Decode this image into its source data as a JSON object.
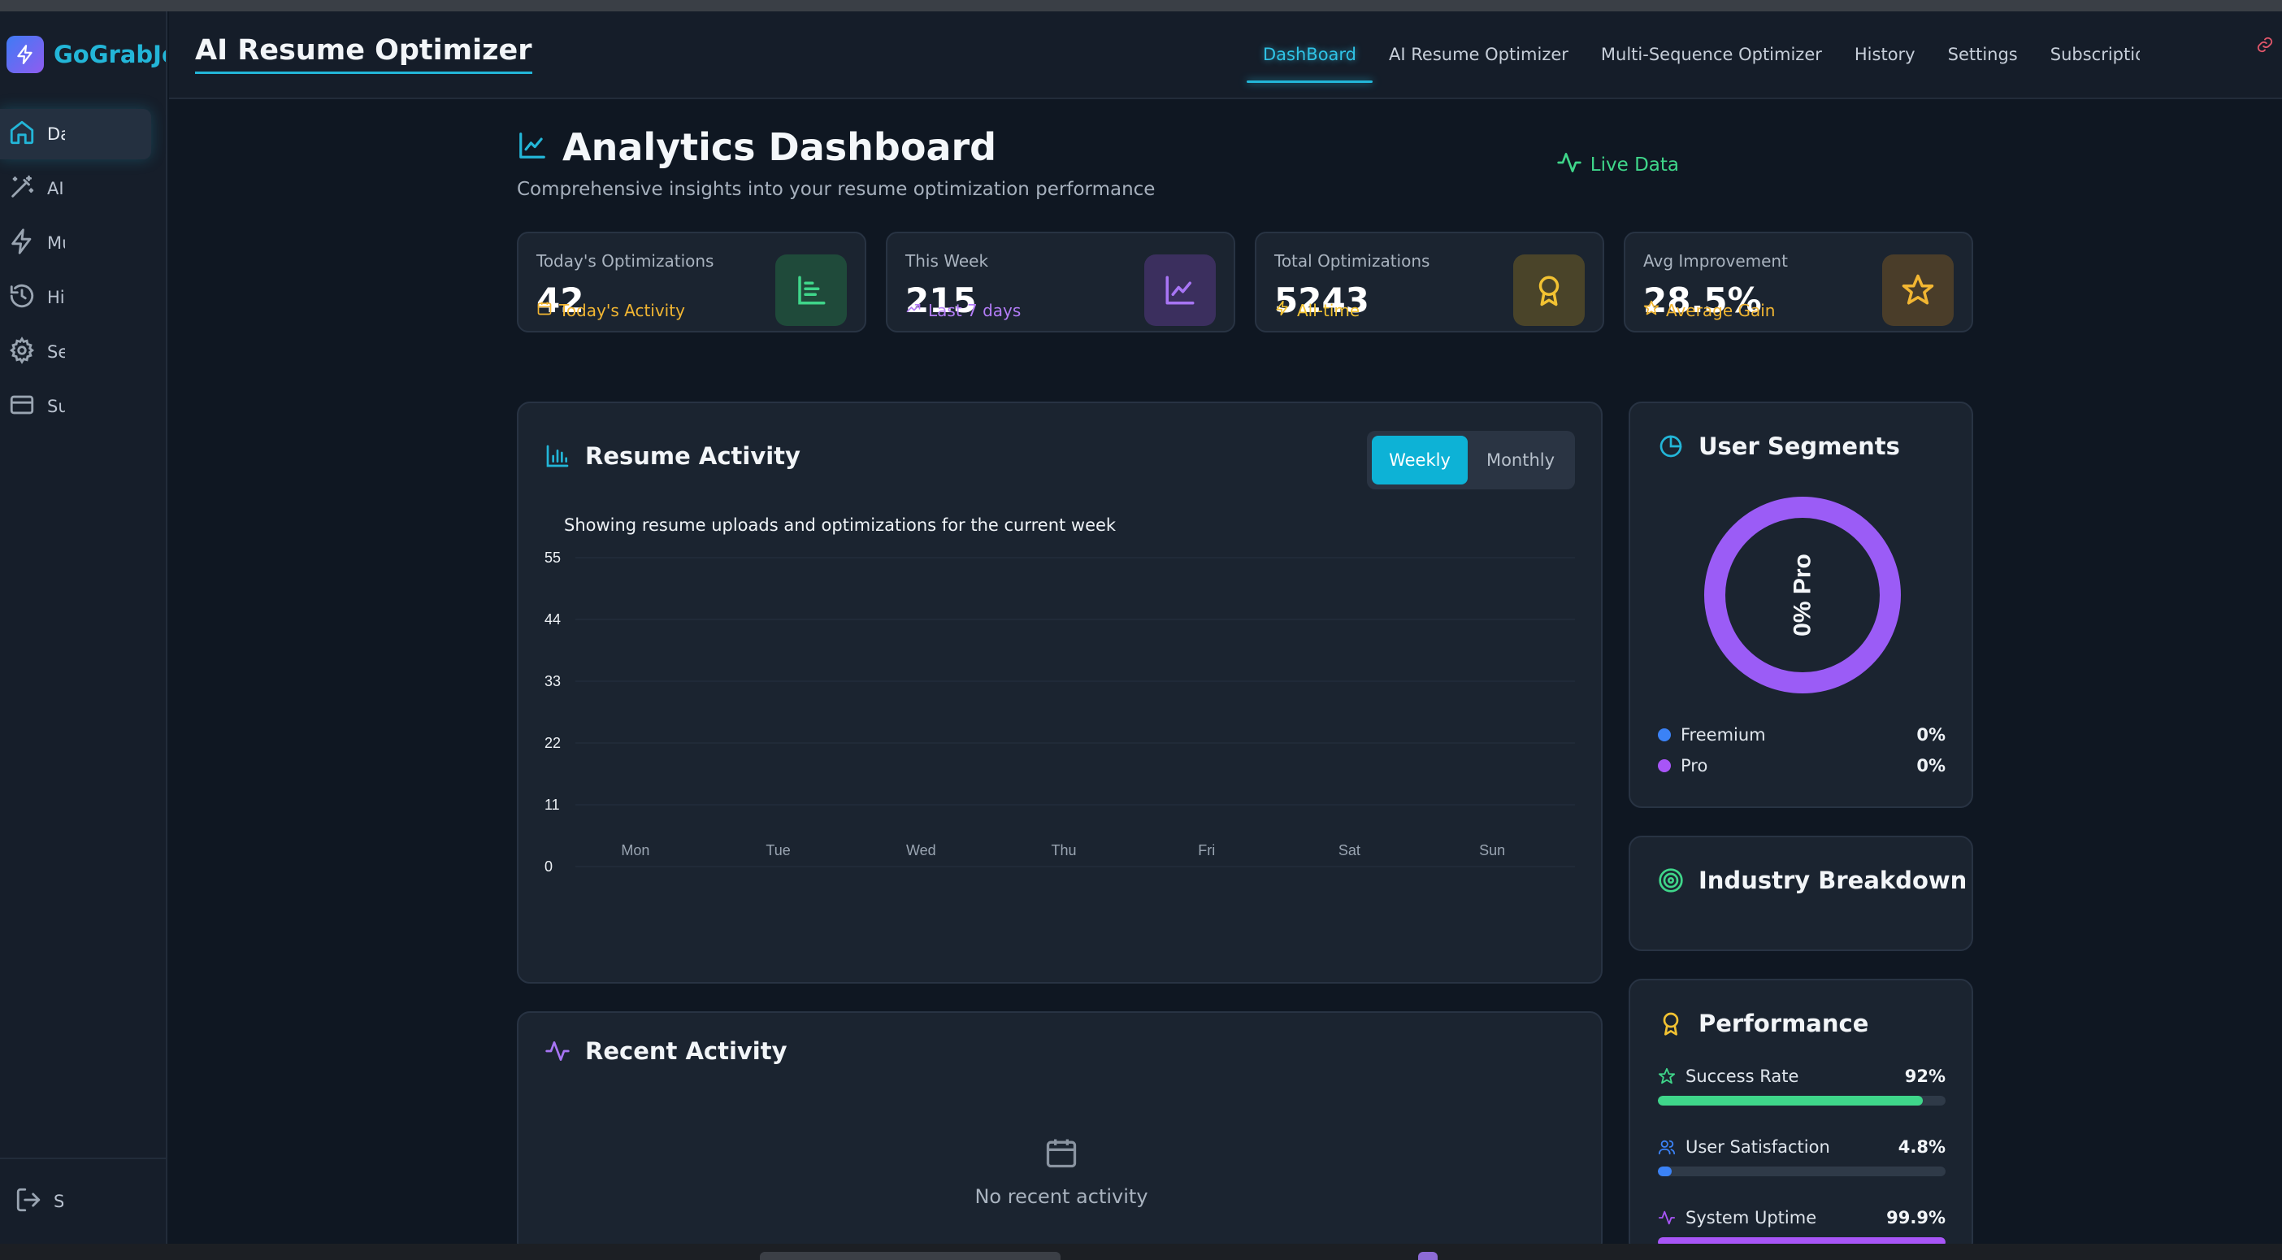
{
  "brand": {
    "name": "GoGrabJobs",
    "accent": "#23b6d8"
  },
  "sidebar": {
    "items": [
      {
        "label": "Dashboard",
        "icon": "home-icon",
        "active": true
      },
      {
        "label": "AI Resume Optimizer",
        "icon": "magic-wand-icon",
        "active": false
      },
      {
        "label": "Multi-Sequence Optimizer",
        "icon": "lightning-icon",
        "active": false
      },
      {
        "label": "History",
        "icon": "history-icon",
        "active": false
      },
      {
        "label": "Settings",
        "icon": "gear-icon",
        "active": false
      },
      {
        "label": "Subscription",
        "icon": "credit-card-icon",
        "active": false
      }
    ],
    "logout_label": "Sign out"
  },
  "header": {
    "app_title": "AI Resume Optimizer",
    "tabs": [
      {
        "label": "DashBoard",
        "active": true
      },
      {
        "label": "AI Resume Optimizer",
        "active": false
      },
      {
        "label": "Multi-Sequence Optimizer",
        "active": false
      },
      {
        "label": "History",
        "active": false
      },
      {
        "label": "Settings",
        "active": false
      },
      {
        "label": "Subscription",
        "active": false
      }
    ]
  },
  "dashboard": {
    "title": "Analytics Dashboard",
    "subtitle": "Comprehensive insights into your resume optimization performance",
    "live_label": "Live Data"
  },
  "stats": [
    {
      "label": "Today's Optimizations",
      "value": "42",
      "sub": "Today's Activity",
      "sub_color": "#f2b632",
      "icon": "bar-list-icon",
      "icon_color": "#3fd68a",
      "icon_bg": "#1f4a3a"
    },
    {
      "label": "This Week",
      "value": "215",
      "sub": "Last 7 days",
      "sub_color": "#b37cf7",
      "icon": "line-chart-icon",
      "icon_color": "#a875f5",
      "icon_bg": "#3b2f5e"
    },
    {
      "label": "Total Optimizations",
      "value": "5243",
      "sub": "All-time",
      "sub_color": "#f2c232",
      "icon": "award-icon",
      "icon_color": "#f2c232",
      "icon_bg": "#4a4429"
    },
    {
      "label": "Avg Improvement",
      "value": "28.5%",
      "sub": "Average Gain",
      "sub_color": "#f2b632",
      "icon": "star-icon",
      "icon_color": "#f2b632",
      "icon_bg": "#4a3d29"
    }
  ],
  "activity_card": {
    "title": "Resume Activity",
    "toggle": {
      "weekly": "Weekly",
      "monthly": "Monthly",
      "selected": "Weekly"
    },
    "caption": "Showing resume uploads and optimizations for the current week"
  },
  "chart_data": {
    "type": "bar",
    "categories": [
      "Mon",
      "Tue",
      "Wed",
      "Thu",
      "Fri",
      "Sat",
      "Sun"
    ],
    "values": [
      0,
      0,
      0,
      0,
      0,
      0,
      0
    ],
    "yticks": [
      "55",
      "44",
      "33",
      "22",
      "11",
      "0"
    ],
    "ylim": [
      0,
      55
    ],
    "grid": true
  },
  "segments_card": {
    "title": "User Segments",
    "donut_label": "0% Pro",
    "donut_color": "#9b5cf6",
    "legend": [
      {
        "name": "Freemium",
        "value": "0%",
        "color": "#3b82f6"
      },
      {
        "name": "Pro",
        "value": "0%",
        "color": "#a855f7"
      }
    ]
  },
  "industry_card": {
    "title": "Industry Breakdown"
  },
  "performance_card": {
    "title": "Performance",
    "rows": [
      {
        "label": "Success Rate",
        "value": "92%",
        "fill": 0.92,
        "color": "#3fd68a",
        "icon": "star-outline-icon"
      },
      {
        "label": "User Satisfaction",
        "value": "4.8%",
        "fill": 0.048,
        "color": "#3b82f6",
        "icon": "users-icon"
      },
      {
        "label": "System Uptime",
        "value": "99.9%",
        "fill": 0.999,
        "color": "#a855f7",
        "icon": "pulse-icon"
      }
    ]
  },
  "recent_card": {
    "title": "Recent Activity",
    "empty_text": "No recent activity"
  }
}
